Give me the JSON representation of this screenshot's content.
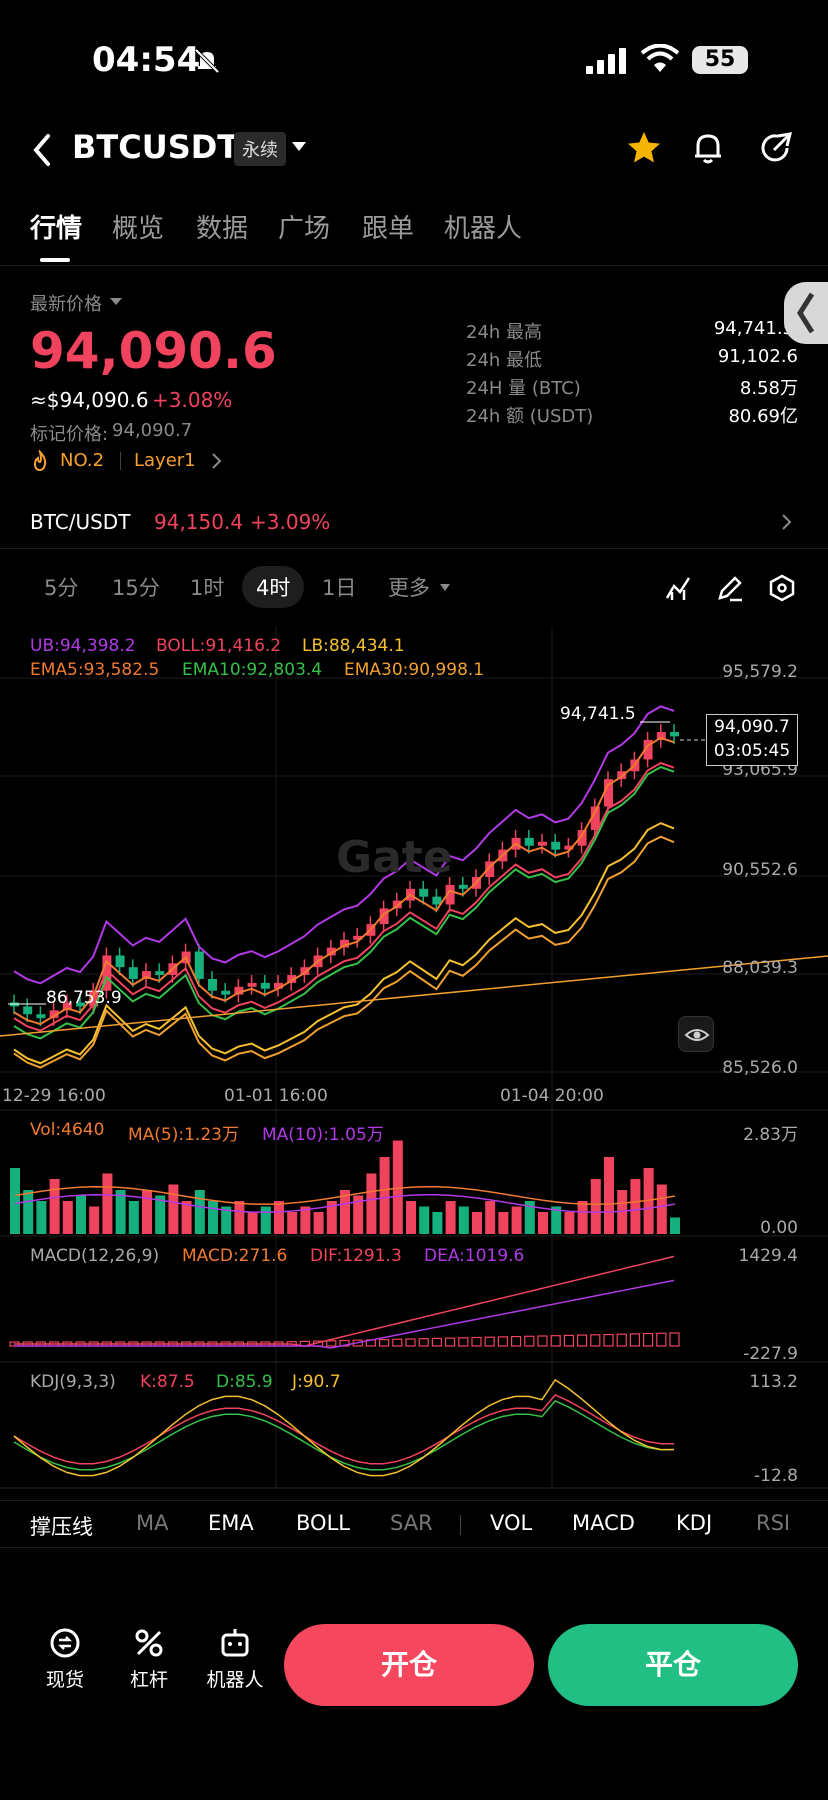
{
  "status": {
    "time": "04:54",
    "battery": "55"
  },
  "header": {
    "pair": "BTCUSDT",
    "type_badge": "永续"
  },
  "tabs": [
    "行情",
    "概览",
    "数据",
    "广场",
    "跟单",
    "机器人"
  ],
  "summary": {
    "latest_label": "最新价格",
    "price": "94,090.6",
    "usd_price": "≈$94,090.6",
    "change_pct": "+3.08%",
    "mark_label": "标记价格:",
    "mark_price": "94,090.7",
    "rank": "NO.2",
    "tag": "Layer1"
  },
  "stats": [
    {
      "label": "24h  最高",
      "value": "94,741.5"
    },
    {
      "label": "24h  最低",
      "value": "91,102.6"
    },
    {
      "label": "24H  量 (BTC)",
      "value": "8.58万"
    },
    {
      "label": "24h  额 (USDT)",
      "value": "80.69亿"
    }
  ],
  "spot": {
    "pair": "BTC/USDT",
    "price": "94,150.4",
    "change": "+3.09%"
  },
  "timeframes": {
    "items": [
      "5分",
      "15分",
      "1时",
      "4时",
      "1日",
      "更多"
    ],
    "active": "4时"
  },
  "main_chart": {
    "boll": {
      "ub": "UB:94,398.2",
      "boll": "BOLL:91,416.2",
      "lb": "LB:88,434.1"
    },
    "ema": {
      "ema5": "EMA5:93,582.5",
      "ema10": "EMA10:92,803.4",
      "ema30": "EMA30:90,998.1"
    },
    "y_ticks": [
      "95,579.2",
      "93,065.9",
      "90,552.6",
      "88,039.3",
      "85,526.0"
    ],
    "x_ticks": [
      "12-29 16:00",
      "01-01 16:00",
      "01-04 20:00"
    ],
    "high_label": "94,741.5",
    "low_label": "86,753.9",
    "current_price": "94,090.7",
    "countdown": "03:05:45",
    "watermark": "Gate"
  },
  "volume": {
    "vol": "Vol:4640",
    "ma5": "MA(5):1.23万",
    "ma10": "MA(10):1.05万",
    "y_top": "2.83万",
    "y_bottom": "0.00"
  },
  "macd": {
    "name": "MACD(12,26,9)",
    "macd": "MACD:271.6",
    "dif": "DIF:1291.3",
    "dea": "DEA:1019.6",
    "y_top": "1429.4",
    "y_bottom": "-227.9"
  },
  "kdj": {
    "name": "KDJ(9,3,3)",
    "k": "K:87.5",
    "d": "D:85.9",
    "j": "J:90.7",
    "y_top": "113.2",
    "y_bottom": "-12.8"
  },
  "indicator_tabs": [
    "撑压线",
    "MA",
    "EMA",
    "BOLL",
    "SAR",
    "VOL",
    "MACD",
    "KDJ",
    "RSI"
  ],
  "footer": {
    "spot": "现货",
    "leverage": "杠杆",
    "bot": "机器人",
    "open": "开仓",
    "close": "平仓"
  },
  "colors": {
    "up": "#f0435e",
    "down": "#16b07f",
    "ub": "#b13ae6",
    "ema10": "#35c04a",
    "ema30": "#f0a030"
  }
}
